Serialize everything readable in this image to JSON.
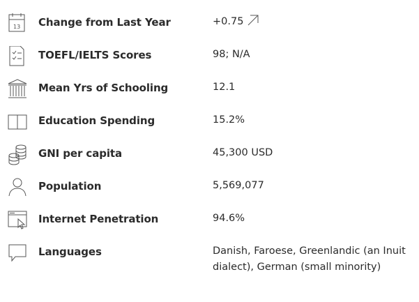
{
  "rows": [
    {
      "icon_text": "13",
      "label": "Change from Last Year",
      "value": "+0.75"
    },
    {
      "label": "TOEFL/IELTS Scores",
      "value": "98; N/A"
    },
    {
      "label": "Mean Yrs of Schooling",
      "value": "12.1"
    },
    {
      "label": "Education Spending",
      "value": "15.2%"
    },
    {
      "label": "GNI per capita",
      "value": "45,300 USD"
    },
    {
      "label": "Population",
      "value": "5,569,077"
    },
    {
      "label": "Internet Penetration",
      "value": "94.6%"
    },
    {
      "label": "Languages",
      "value": "Danish, Faroese, Greenlandic (an Inuit dialect), German (small minority)"
    }
  ]
}
